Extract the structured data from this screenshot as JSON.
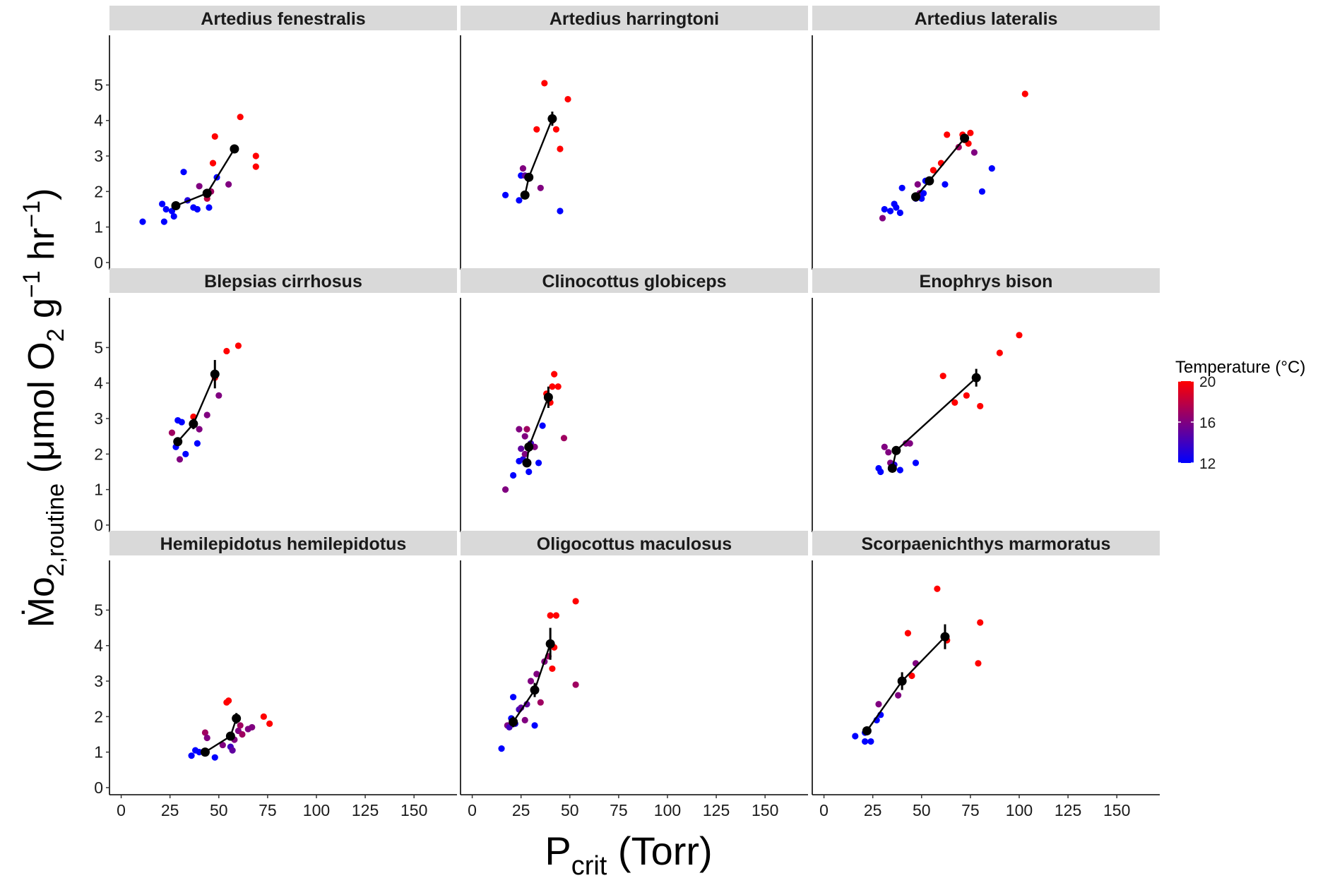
{
  "chart_data": {
    "type": "scatter",
    "layout": "facet-grid-3x3",
    "xlabel": {
      "main": "P",
      "sub": "crit",
      "unit": " (Torr)"
    },
    "ylabel": {
      "main": "Ṁo",
      "sub": "2,routine",
      "unit_pre": " (μmol O",
      "unit_sub": "2",
      "unit_mid": " g",
      "sup1": "−1",
      "unit_mid2": " hr",
      "sup2": "−1",
      "unit_end": ")"
    },
    "xlim": [
      -6,
      172
    ],
    "ylim": [
      -0.2,
      6.4
    ],
    "x_ticks": [
      0,
      25,
      50,
      75,
      100,
      125,
      150
    ],
    "y_ticks": [
      0,
      1,
      2,
      3,
      4,
      5
    ],
    "legend": {
      "title": "Temperature (°C)",
      "position": "right",
      "range": [
        12,
        20
      ],
      "ticks": [
        12,
        16,
        20
      ],
      "low_color": "#0000FF",
      "high_color": "#FF0000"
    },
    "panels": [
      {
        "title": "Artedius fenestralis",
        "points": [
          [
            11,
            1.15,
            12
          ],
          [
            21,
            1.65,
            12
          ],
          [
            22,
            1.15,
            12
          ],
          [
            23,
            1.5,
            12
          ],
          [
            26,
            1.45,
            12
          ],
          [
            27,
            1.3,
            12
          ],
          [
            32,
            2.55,
            12
          ],
          [
            34,
            1.75,
            13
          ],
          [
            37,
            1.55,
            12
          ],
          [
            39,
            1.5,
            12
          ],
          [
            40,
            2.15,
            16
          ],
          [
            44,
            1.8,
            18
          ],
          [
            45,
            1.55,
            12
          ],
          [
            46,
            2.0,
            17
          ],
          [
            47,
            2.8,
            20
          ],
          [
            48,
            3.55,
            20
          ],
          [
            49,
            2.4,
            12
          ],
          [
            55,
            2.2,
            16
          ],
          [
            61,
            4.1,
            20
          ],
          [
            69,
            3.0,
            20
          ],
          [
            69,
            2.7,
            20
          ]
        ],
        "means": [
          [
            28,
            1.6,
            0.5,
            0
          ],
          [
            44,
            1.95,
            0.4,
            0
          ],
          [
            58,
            3.2,
            1.2,
            0.1
          ]
        ]
      },
      {
        "title": "Artedius harringtoni",
        "points": [
          [
            17,
            1.9,
            12
          ],
          [
            24,
            1.75,
            12
          ],
          [
            25,
            2.45,
            12
          ],
          [
            26,
            2.65,
            16
          ],
          [
            27,
            2.45,
            15
          ],
          [
            33,
            3.75,
            20
          ],
          [
            35,
            2.1,
            16
          ],
          [
            41,
            4.0,
            20
          ],
          [
            43,
            3.75,
            20
          ],
          [
            45,
            1.45,
            12
          ],
          [
            45,
            3.2,
            20
          ],
          [
            49,
            4.6,
            20
          ],
          [
            37,
            5.05,
            20
          ]
        ],
        "means": [
          [
            27,
            1.9,
            1.2,
            0.05
          ],
          [
            29,
            2.4,
            0.4,
            0.1
          ],
          [
            41,
            4.05,
            0.4,
            0.2
          ]
        ]
      },
      {
        "title": "Artedius lateralis",
        "points": [
          [
            30,
            1.25,
            16
          ],
          [
            31,
            1.5,
            12
          ],
          [
            34,
            1.45,
            12
          ],
          [
            36,
            1.65,
            12
          ],
          [
            37,
            1.55,
            12
          ],
          [
            39,
            1.4,
            12
          ],
          [
            40,
            2.1,
            12
          ],
          [
            47,
            1.8,
            13
          ],
          [
            48,
            2.2,
            16
          ],
          [
            49,
            1.95,
            16
          ],
          [
            50,
            1.8,
            12
          ],
          [
            51,
            1.95,
            12
          ],
          [
            52,
            2.3,
            12
          ],
          [
            56,
            2.6,
            20
          ],
          [
            60,
            2.8,
            20
          ],
          [
            62,
            2.2,
            12
          ],
          [
            63,
            3.6,
            20
          ],
          [
            69,
            3.25,
            17
          ],
          [
            71,
            3.6,
            20
          ],
          [
            72,
            3.45,
            20
          ],
          [
            74,
            3.35,
            20
          ],
          [
            75,
            3.65,
            20
          ],
          [
            77,
            3.1,
            16
          ],
          [
            81,
            2.0,
            12
          ],
          [
            86,
            2.65,
            12
          ],
          [
            103,
            4.75,
            20
          ]
        ],
        "means": [
          [
            47,
            1.85,
            0.5,
            0.05
          ],
          [
            54,
            2.3,
            0.8,
            0.1
          ],
          [
            72,
            3.5,
            1.0,
            0.1
          ]
        ]
      },
      {
        "title": "Blepsias cirrhosus",
        "points": [
          [
            26,
            2.6,
            17
          ],
          [
            28,
            2.2,
            12
          ],
          [
            29,
            2.95,
            12
          ],
          [
            30,
            1.85,
            16
          ],
          [
            31,
            2.9,
            12
          ],
          [
            33,
            2.0,
            12
          ],
          [
            37,
            3.05,
            20
          ],
          [
            39,
            2.3,
            12
          ],
          [
            40,
            2.7,
            16
          ],
          [
            44,
            3.1,
            16
          ],
          [
            48,
            4.15,
            20
          ],
          [
            50,
            3.65,
            16
          ],
          [
            54,
            4.9,
            20
          ],
          [
            60,
            5.05,
            20
          ]
        ],
        "means": [
          [
            29,
            2.35,
            0.3,
            0.1
          ],
          [
            37,
            2.85,
            0.4,
            0.15
          ],
          [
            48,
            4.25,
            0.6,
            0.4
          ]
        ]
      },
      {
        "title": "Clinocottus globiceps",
        "points": [
          [
            17,
            1.0,
            16
          ],
          [
            21,
            1.4,
            12
          ],
          [
            24,
            1.8,
            12
          ],
          [
            24,
            2.7,
            16
          ],
          [
            25,
            2.15,
            15
          ],
          [
            26,
            1.85,
            13
          ],
          [
            27,
            2.5,
            16
          ],
          [
            27,
            2.0,
            16
          ],
          [
            28,
            2.7,
            17
          ],
          [
            29,
            1.5,
            12
          ],
          [
            30,
            2.3,
            14
          ],
          [
            32,
            2.2,
            16
          ],
          [
            34,
            1.75,
            12
          ],
          [
            36,
            2.8,
            12
          ],
          [
            38,
            3.7,
            20
          ],
          [
            40,
            3.45,
            20
          ],
          [
            41,
            3.9,
            20
          ],
          [
            42,
            4.25,
            20
          ],
          [
            44,
            3.9,
            20
          ],
          [
            47,
            2.45,
            17
          ]
        ],
        "means": [
          [
            28,
            1.75,
            0.2,
            0.1
          ],
          [
            29,
            2.2,
            0.2,
            0.15
          ],
          [
            39,
            3.6,
            0.1,
            0.3
          ]
        ]
      },
      {
        "title": "Enophrys bison",
        "points": [
          [
            28,
            1.6,
            12
          ],
          [
            29,
            1.5,
            12
          ],
          [
            31,
            2.2,
            16
          ],
          [
            33,
            2.05,
            16
          ],
          [
            34,
            1.75,
            16
          ],
          [
            36,
            1.7,
            13
          ],
          [
            39,
            1.55,
            12
          ],
          [
            42,
            2.3,
            16
          ],
          [
            44,
            2.3,
            16
          ],
          [
            47,
            1.75,
            12
          ],
          [
            61,
            4.2,
            20
          ],
          [
            67,
            3.45,
            20
          ],
          [
            73,
            3.65,
            20
          ],
          [
            80,
            3.35,
            20
          ],
          [
            90,
            4.85,
            20
          ],
          [
            100,
            5.35,
            20
          ]
        ],
        "means": [
          [
            35,
            1.6,
            0.4,
            0.05
          ],
          [
            37,
            2.1,
            0.2,
            0.1
          ],
          [
            78,
            4.15,
            1.1,
            0.25
          ]
        ]
      },
      {
        "title": "Hemilepidotus hemilepidotus",
        "points": [
          [
            36,
            0.9,
            12
          ],
          [
            38,
            1.05,
            12
          ],
          [
            40,
            1.0,
            12
          ],
          [
            43,
            1.55,
            17
          ],
          [
            44,
            1.4,
            16
          ],
          [
            48,
            0.85,
            12
          ],
          [
            52,
            1.2,
            16
          ],
          [
            54,
            2.4,
            20
          ],
          [
            55,
            2.45,
            20
          ],
          [
            56,
            1.15,
            14
          ],
          [
            57,
            1.05,
            15
          ],
          [
            58,
            1.35,
            16
          ],
          [
            60,
            1.6,
            16
          ],
          [
            61,
            1.75,
            17
          ],
          [
            62,
            1.5,
            17
          ],
          [
            65,
            1.65,
            16
          ],
          [
            67,
            1.7,
            16
          ],
          [
            73,
            2.0,
            20
          ],
          [
            76,
            1.8,
            20
          ]
        ],
        "means": [
          [
            43,
            1.0,
            0.3,
            0.05
          ],
          [
            56,
            1.45,
            0.4,
            0.1
          ],
          [
            59,
            1.95,
            0.5,
            0.15
          ]
        ]
      },
      {
        "title": "Oligocottus maculosus",
        "points": [
          [
            15,
            1.1,
            12
          ],
          [
            18,
            1.75,
            16
          ],
          [
            19,
            1.7,
            14
          ],
          [
            20,
            1.95,
            12
          ],
          [
            21,
            2.55,
            12
          ],
          [
            22,
            1.8,
            13
          ],
          [
            24,
            2.2,
            14
          ],
          [
            25,
            2.25,
            15
          ],
          [
            27,
            1.9,
            16
          ],
          [
            28,
            2.35,
            15
          ],
          [
            30,
            3.0,
            16
          ],
          [
            32,
            1.75,
            12
          ],
          [
            33,
            3.2,
            16
          ],
          [
            35,
            2.4,
            17
          ],
          [
            37,
            3.55,
            16
          ],
          [
            39,
            3.7,
            17
          ],
          [
            40,
            4.85,
            20
          ],
          [
            41,
            3.35,
            20
          ],
          [
            42,
            3.95,
            20
          ],
          [
            43,
            4.85,
            20
          ],
          [
            53,
            2.9,
            17
          ],
          [
            53,
            5.25,
            20
          ]
        ],
        "means": [
          [
            21,
            1.85,
            0.3,
            0.15
          ],
          [
            32,
            2.75,
            0.4,
            0.2
          ],
          [
            40,
            4.05,
            0.5,
            0.45
          ]
        ]
      },
      {
        "title": "Scorpaenichthys marmoratus",
        "points": [
          [
            16,
            1.45,
            12
          ],
          [
            21,
            1.55,
            12
          ],
          [
            21,
            1.3,
            12
          ],
          [
            24,
            1.3,
            12
          ],
          [
            27,
            1.9,
            12
          ],
          [
            28,
            2.35,
            16
          ],
          [
            29,
            2.05,
            12
          ],
          [
            38,
            2.6,
            16
          ],
          [
            43,
            4.35,
            20
          ],
          [
            45,
            3.15,
            20
          ],
          [
            47,
            3.5,
            16
          ],
          [
            58,
            5.6,
            20
          ],
          [
            63,
            4.15,
            20
          ],
          [
            79,
            3.5,
            20
          ],
          [
            80,
            4.65,
            20
          ]
        ],
        "means": [
          [
            22,
            1.6,
            0.4,
            0.05
          ],
          [
            40,
            3.0,
            0.5,
            0.25
          ],
          [
            62,
            4.25,
            1.0,
            0.35
          ]
        ]
      }
    ]
  }
}
